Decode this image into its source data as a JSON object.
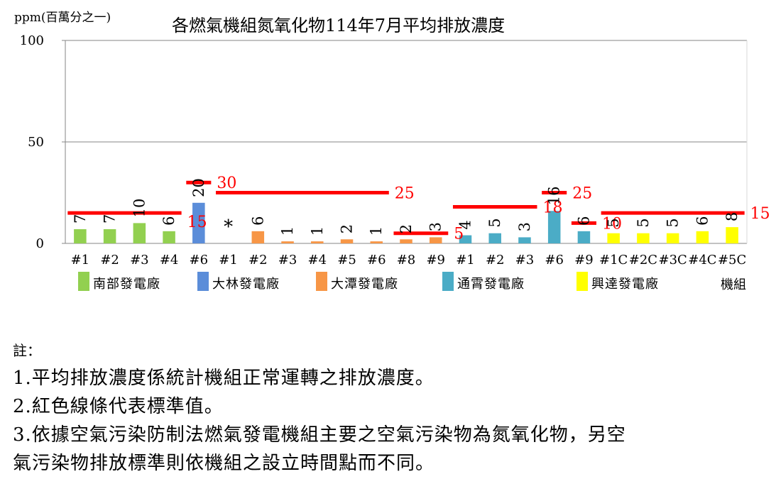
{
  "chart_data": {
    "type": "bar",
    "title": "各燃氣機組氮氧化物114年7月平均排放濃度",
    "ylabel": "ppm(百萬分之一)",
    "xlabel": "機組",
    "ylim": [
      0,
      100
    ],
    "yticks": [
      0,
      50,
      100
    ],
    "grid": true,
    "categories": [
      "#1",
      "#2",
      "#3",
      "#4",
      "#6",
      "#1",
      "#2",
      "#3",
      "#4",
      "#5",
      "#6",
      "#8",
      "#9",
      "#1",
      "#2",
      "#3",
      "#6",
      "#9",
      "#1C",
      "#2C",
      "#3C",
      "#4C",
      "#5C"
    ],
    "values": [
      7,
      7,
      10,
      6,
      20,
      null,
      6,
      1,
      1,
      2,
      1,
      2,
      3,
      4,
      5,
      3,
      16,
      6,
      5,
      5,
      5,
      6,
      8
    ],
    "value_labels": [
      "7",
      "7",
      "10",
      "6",
      "20",
      "*",
      "6",
      "1",
      "1",
      "2",
      "1",
      "2",
      "3",
      "4",
      "5",
      "3",
      "16",
      "6",
      "5",
      "5",
      "5",
      "6",
      "8"
    ],
    "plants": [
      {
        "name": "南部發電廠",
        "color": "#92D050",
        "start": 0,
        "end": 3
      },
      {
        "name": "大林發電廠",
        "color": "#5B8DD9",
        "start": 4,
        "end": 4
      },
      {
        "name": "大潭發電廠",
        "color": "#F79646",
        "start": 5,
        "end": 12
      },
      {
        "name": "通霄發電廠",
        "color": "#4BACC6",
        "start": 13,
        "end": 17
      },
      {
        "name": "興達發電廠",
        "color": "#FFFF00",
        "start": 18,
        "end": 22
      }
    ],
    "standards": [
      {
        "value": 15,
        "label": "15",
        "start": 0,
        "end": 3
      },
      {
        "value": 30,
        "label": "30",
        "start": 4,
        "end": 4
      },
      {
        "value": 25,
        "label": "25",
        "start": 5,
        "end": 10
      },
      {
        "value": 5,
        "label": "5",
        "start": 11,
        "end": 12
      },
      {
        "value": 18,
        "label": "18",
        "start": 13,
        "end": 15
      },
      {
        "value": 25,
        "label": "25",
        "start": 16,
        "end": 16
      },
      {
        "value": 10,
        "label": "10",
        "start": 17,
        "end": 17
      },
      {
        "value": 15,
        "label": "15",
        "start": 18,
        "end": 22
      }
    ],
    "standard_color": "#FF0000"
  },
  "notes": {
    "heading": "註：",
    "lines": [
      "1.平均排放濃度係統計機組正常運轉之排放濃度。",
      "2.紅色線條代表標準值。",
      "3.依據空氣污染防制法燃氣發電機組主要之空氣污染物為氮氧化物，另空",
      "氣污染物排放標準則依機組之設立時間點而不同。"
    ]
  }
}
